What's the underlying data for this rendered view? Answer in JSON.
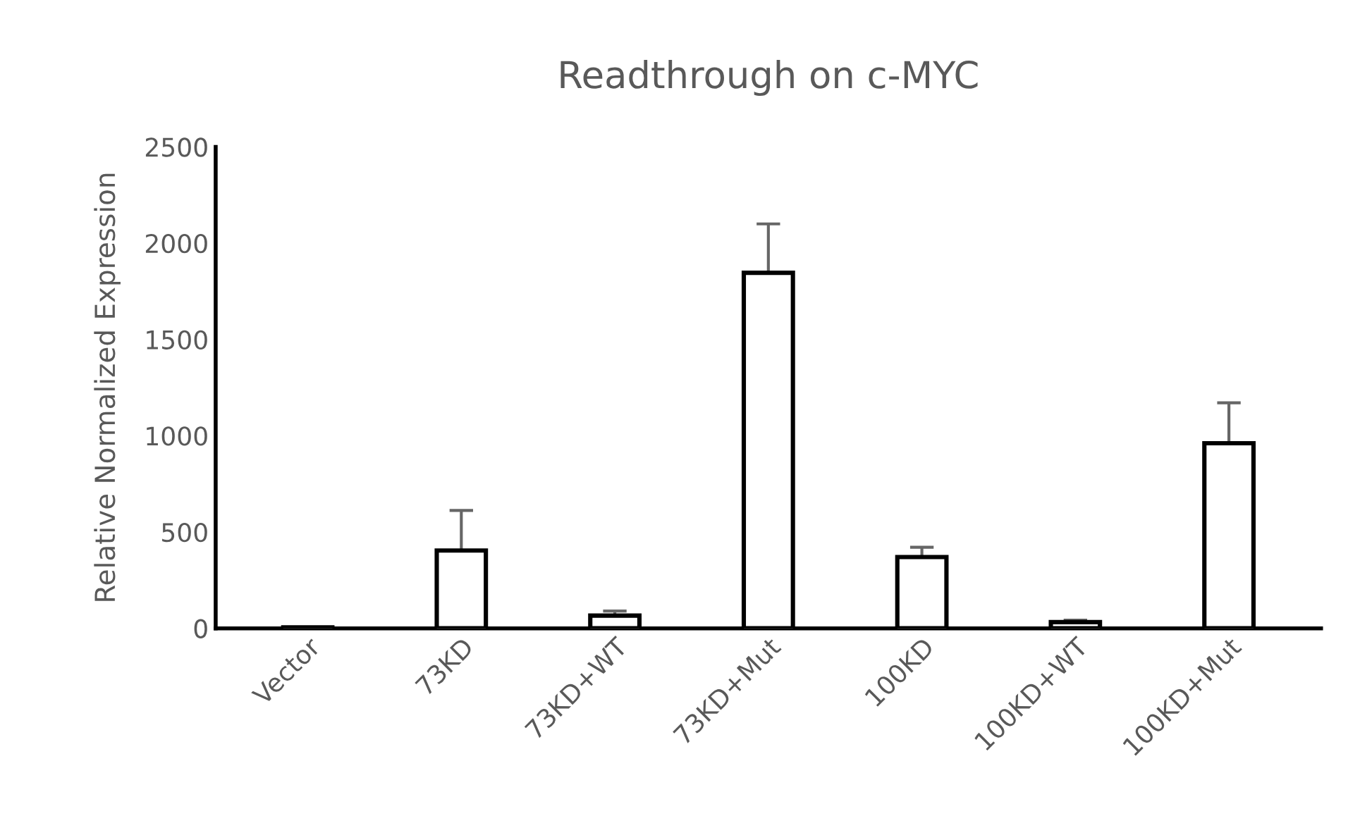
{
  "chart_data": {
    "type": "bar",
    "title": "Readthrough on c-MYC",
    "ylabel": "Relative Normalized Expression",
    "categories": [
      "Vector",
      "73KD",
      "73KD+WT",
      "73KD+Mut",
      "100KD",
      "100KD+WT",
      "100KD+Mut"
    ],
    "values": [
      5,
      404,
      66,
      1846,
      370,
      32,
      961
    ],
    "errors": [
      null,
      [
        404,
        612
      ],
      [
        66,
        90
      ],
      [
        1846,
        2100
      ],
      [
        370,
        421
      ],
      [
        32,
        42
      ],
      [
        961,
        1171
      ]
    ],
    "color": "#ffffff",
    "ylim": [
      0,
      2500
    ],
    "yticks": [
      0,
      500,
      1000,
      1500,
      2000,
      2500
    ],
    "grid": false,
    "legend": false
  }
}
